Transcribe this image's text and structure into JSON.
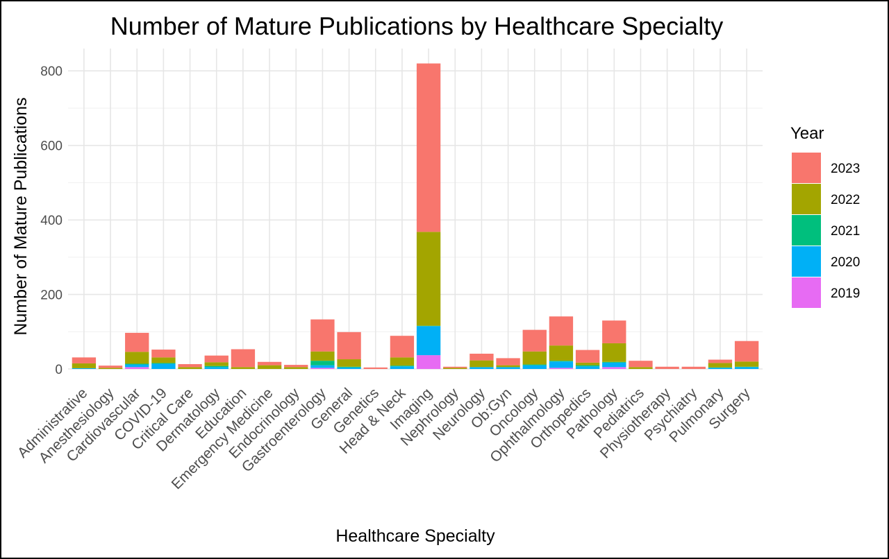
{
  "chart_data": {
    "type": "bar",
    "stacked": true,
    "title": "Number of Mature Publications by Healthcare Specialty",
    "xlabel": "Healthcare Specialty",
    "ylabel": "Number of Mature Publications",
    "ylim": [
      0,
      860
    ],
    "yticks": [
      0,
      200,
      400,
      600,
      800
    ],
    "grid": true,
    "legend": {
      "title": "Year",
      "placement": "right"
    },
    "categories": [
      "Administrative",
      "Anesthesiology",
      "Cardiovascular",
      "COVID-19",
      "Critical Care",
      "Dermatology",
      "Education",
      "Emergency Medicine",
      "Endocrinology",
      "Gastroenterology",
      "General",
      "Genetics",
      "Head & Neck",
      "Imaging",
      "Nephrology",
      "Neurology",
      "Ob:Gyn",
      "Oncology",
      "Ophthalmology",
      "Orthopedics",
      "Pathology",
      "Pediatrics",
      "Physiotherapy",
      "Psychiatry",
      "Pulmonary",
      "Surgery"
    ],
    "series": [
      {
        "name": "2019",
        "color": "#E76BF3",
        "values": [
          0,
          0,
          5,
          0,
          0,
          0,
          0,
          0,
          0,
          3,
          0,
          0,
          0,
          37,
          0,
          0,
          0,
          0,
          3,
          0,
          5,
          0,
          0,
          0,
          0,
          0
        ]
      },
      {
        "name": "2020",
        "color": "#00B0F6",
        "values": [
          2,
          0,
          7,
          14,
          0,
          5,
          0,
          0,
          0,
          7,
          4,
          0,
          7,
          78,
          0,
          5,
          5,
          10,
          17,
          7,
          12,
          0,
          0,
          0,
          3,
          5
        ]
      },
      {
        "name": "2021",
        "color": "#00BF7D",
        "values": [
          0,
          0,
          2,
          2,
          0,
          3,
          0,
          0,
          0,
          12,
          2,
          0,
          2,
          1,
          0,
          0,
          0,
          2,
          2,
          3,
          2,
          0,
          0,
          0,
          1,
          1
        ]
      },
      {
        "name": "2022",
        "color": "#A3A500",
        "values": [
          13,
          3,
          32,
          15,
          5,
          10,
          5,
          10,
          5,
          25,
          20,
          0,
          22,
          252,
          3,
          18,
          5,
          35,
          41,
          7,
          50,
          5,
          0,
          0,
          12,
          14
        ]
      },
      {
        "name": "2023",
        "color": "#F8766D",
        "values": [
          16,
          6,
          51,
          21,
          8,
          18,
          48,
          9,
          6,
          86,
          73,
          4,
          58,
          452,
          3,
          18,
          19,
          58,
          78,
          34,
          61,
          17,
          6,
          6,
          9,
          55
        ]
      }
    ]
  }
}
